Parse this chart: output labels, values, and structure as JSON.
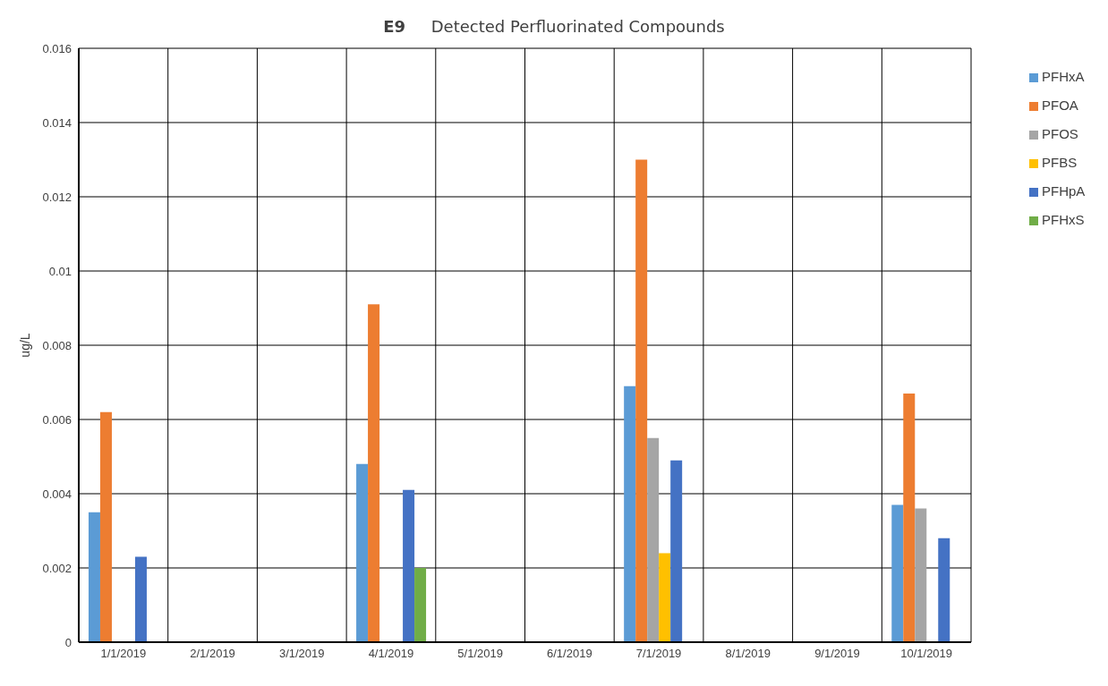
{
  "chart_data": {
    "type": "bar",
    "title": "E9     Detected Perfluorinated Compounds",
    "ylabel": "ug/L",
    "categories": [
      "1/1/2019",
      "2/1/2019",
      "3/1/2019",
      "4/1/2019",
      "5/1/2019",
      "6/1/2019",
      "7/1/2019",
      "8/1/2019",
      "9/1/2019",
      "10/1/2019"
    ],
    "series": [
      {
        "name": "PFHxA",
        "color": "#5b9bd5",
        "values": [
          0.0035,
          null,
          null,
          0.0048,
          null,
          null,
          0.0069,
          null,
          null,
          0.0037
        ]
      },
      {
        "name": "PFOA",
        "color": "#ed7d31",
        "values": [
          0.0062,
          null,
          null,
          0.0091,
          null,
          null,
          0.013,
          null,
          null,
          0.0067
        ]
      },
      {
        "name": "PFOS",
        "color": "#a5a5a5",
        "values": [
          null,
          null,
          null,
          null,
          null,
          null,
          0.0055,
          null,
          null,
          0.0036
        ]
      },
      {
        "name": "PFBS",
        "color": "#ffc000",
        "values": [
          null,
          null,
          null,
          null,
          null,
          null,
          0.0024,
          null,
          null,
          null
        ]
      },
      {
        "name": "PFHpA",
        "color": "#4472c4",
        "values": [
          0.0023,
          null,
          null,
          0.0041,
          null,
          null,
          0.0049,
          null,
          null,
          0.0028
        ]
      },
      {
        "name": "PFHxS",
        "color": "#70ad47",
        "values": [
          null,
          null,
          null,
          0.002,
          null,
          null,
          null,
          null,
          null,
          null
        ]
      }
    ],
    "ylim": [
      0,
      0.016
    ],
    "yticks": [
      0,
      0.002,
      0.004,
      0.006,
      0.008,
      0.01,
      0.012,
      0.014,
      0.016
    ],
    "grid": true,
    "legend": "right"
  }
}
